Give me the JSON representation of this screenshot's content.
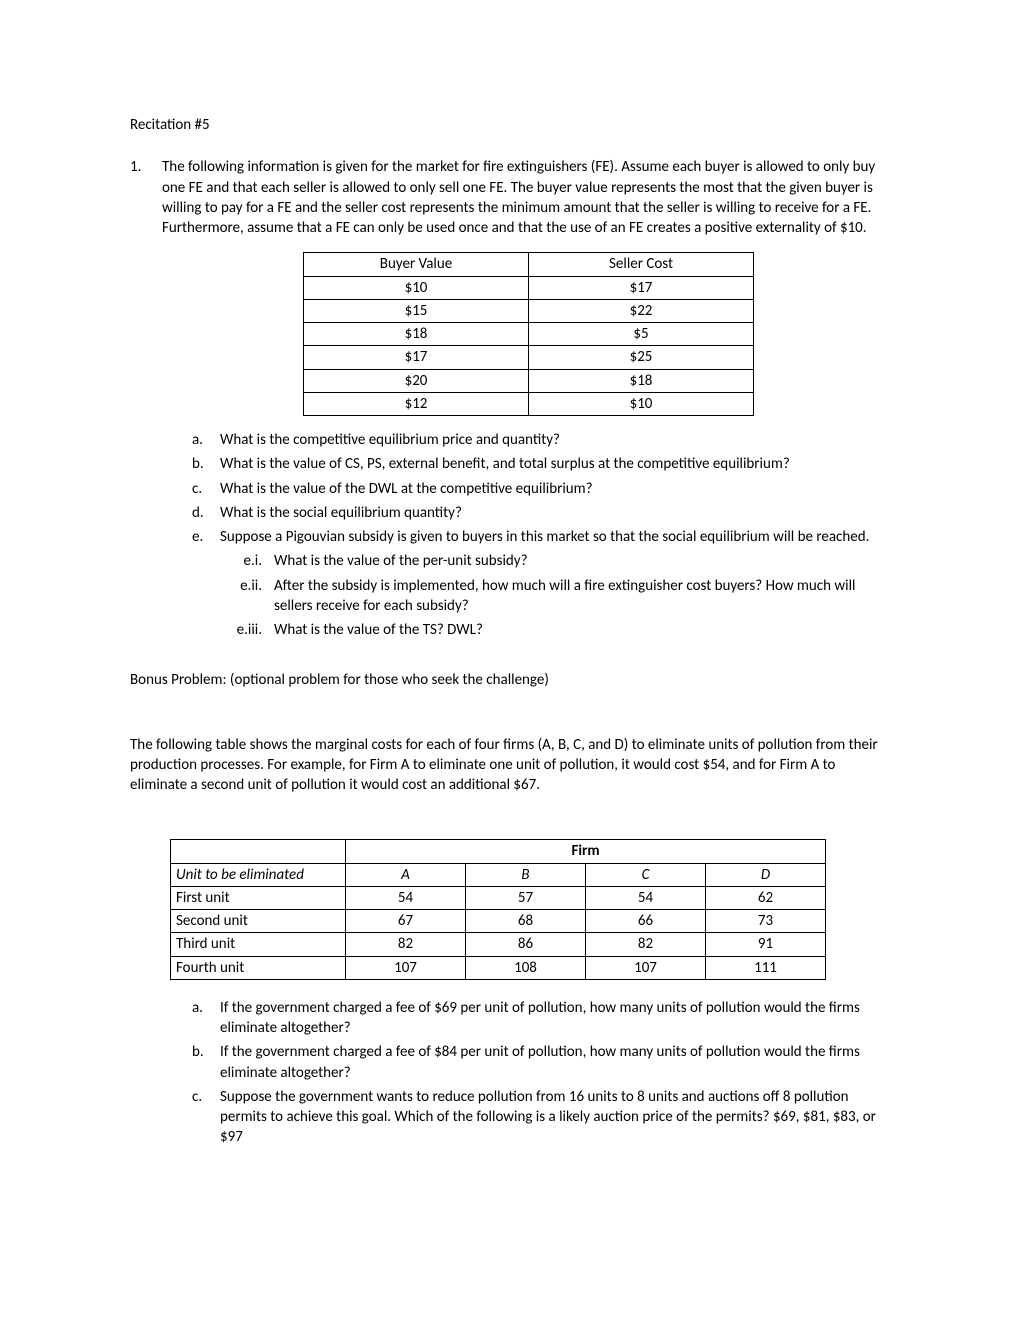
{
  "title": "Recitation #5",
  "q1": {
    "number": "1.",
    "intro": "The following information is given for the market for fire extinguishers (FE). Assume each buyer is allowed to only buy one FE and that each seller is allowed to only sell one FE. The buyer value represents the most that the given buyer is willing to pay for a FE and the seller cost represents the minimum amount that the seller is willing to receive for a FE.  Furthermore, assume that a FE can only be used once and that the use of an FE creates a positive externality of $10.",
    "table": {
      "headers": [
        "Buyer Value",
        "Seller Cost"
      ],
      "rows": [
        [
          "$10",
          "$17"
        ],
        [
          "$15",
          "$22"
        ],
        [
          "$18",
          "$5"
        ],
        [
          "$17",
          "$25"
        ],
        [
          "$20",
          "$18"
        ],
        [
          "$12",
          "$10"
        ]
      ]
    },
    "subs": {
      "a": "What is the competitive equilibrium price and quantity?",
      "b": "What is the value of CS, PS, external benefit, and total surplus at the competitive equilibrium?",
      "c": "What is the value of the DWL at the competitive equilibrium?",
      "d": "What is the social equilibrium quantity?",
      "e": "Suppose a Pigouvian subsidy is given to buyers in this market so that the social equilibrium will be reached.",
      "e_i": "What is the value of the per-unit subsidy?",
      "e_ii": "After the subsidy is implemented, how much will a fire extinguisher cost buyers?  How much will sellers receive for each subsidy?",
      "e_iii": "What is the value of the TS?  DWL?"
    }
  },
  "bonus": {
    "heading": "Bonus Problem: (optional problem for those who seek the challenge)",
    "intro": "The following table shows the marginal costs for each of four firms (A, B, C, and D) to eliminate units of pollution from their production processes.  For example, for Firm A to eliminate one unit of pollution, it would cost $54, and for Firm A to eliminate a second unit of pollution it would cost an additional $67.",
    "table": {
      "firm_label": "Firm",
      "row_header": "Unit to be eliminated",
      "cols": [
        "A",
        "B",
        "C",
        "D"
      ],
      "rows": [
        {
          "label": "First unit",
          "vals": [
            "54",
            "57",
            "54",
            "62"
          ]
        },
        {
          "label": "Second unit",
          "vals": [
            "67",
            "68",
            "66",
            "73"
          ]
        },
        {
          "label": "Third unit",
          "vals": [
            "82",
            "86",
            "82",
            "91"
          ]
        },
        {
          "label": "Fourth unit",
          "vals": [
            "107",
            "108",
            "107",
            "111"
          ]
        }
      ]
    },
    "subs": {
      "a": "If the government charged a fee of $69 per unit of pollution, how many units of pollution would the firms eliminate altogether?",
      "b": "If the government charged a fee of $84 per unit of pollution, how many units of pollution would the firms eliminate altogether?",
      "c": "Suppose the government wants to reduce pollution from 16 units to 8 units and auctions off 8 pollution permits to achieve this goal.  Which of the following is a likely auction price of the permits? $69, $81, $83, or $97"
    }
  },
  "labels": {
    "a": "a.",
    "b": "b.",
    "c": "c.",
    "d": "d.",
    "e": "e.",
    "ei": "e.i.",
    "eii": "e.ii.",
    "eiii": "e.iii."
  }
}
